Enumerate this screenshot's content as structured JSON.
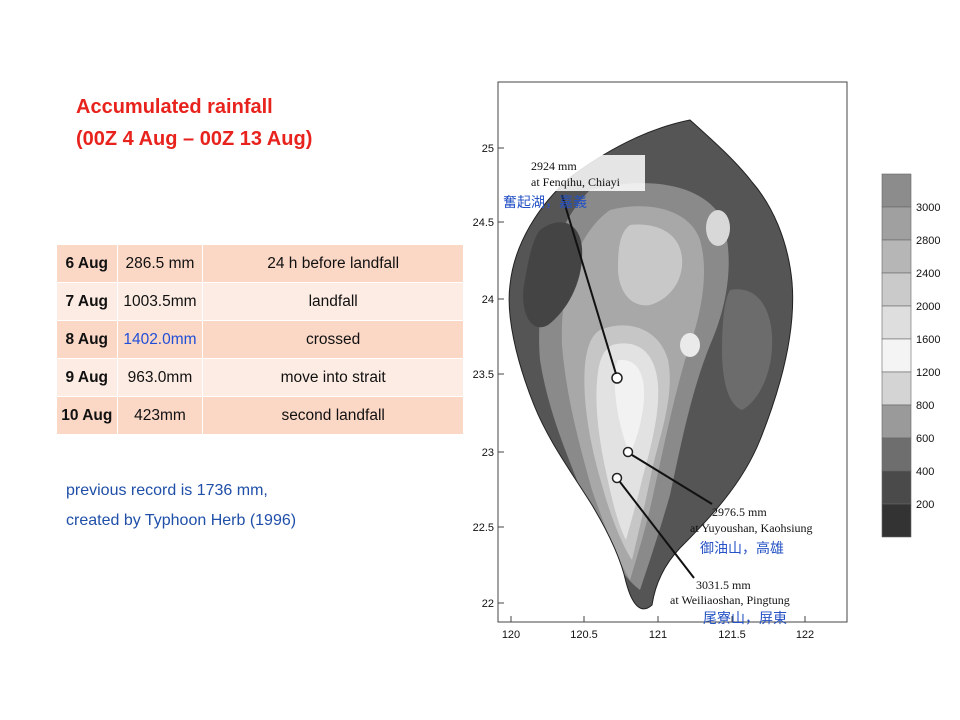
{
  "title": {
    "line1": "Accumulated rainfall",
    "line2": "(00Z 4 Aug – 00Z 13 Aug)"
  },
  "rain_table": {
    "rows": [
      {
        "date": "6 Aug",
        "amount": "286.5 mm",
        "note": "24 h before landfall",
        "amount_color": "#111111"
      },
      {
        "date": "7 Aug",
        "amount": "1003.5mm",
        "note": "landfall",
        "amount_color": "#111111"
      },
      {
        "date": "8 Aug",
        "amount": "1402.0mm",
        "note": "crossed",
        "amount_color": "#1f4fd6"
      },
      {
        "date": "9 Aug",
        "amount": "963.0mm",
        "note": "move into strait",
        "amount_color": "#111111"
      },
      {
        "date": "10 Aug",
        "amount": "423mm",
        "note": "second landfall",
        "amount_color": "#111111"
      }
    ]
  },
  "note": {
    "line1": "previous record is 1736 mm,",
    "line2": "created by Typhoon Herb (1996)"
  },
  "map": {
    "lat_ticks": [
      "25",
      "24.5",
      "24",
      "23.5",
      "23",
      "22.5",
      "22"
    ],
    "lon_ticks": [
      "120",
      "120.5",
      "121",
      "121.5",
      "122"
    ],
    "annotations": [
      {
        "en1": "2924 mm",
        "en2": "at Fenqihu, Chiayi",
        "zh": "奮起湖，嘉義"
      },
      {
        "en1": "2976.5 mm",
        "en2": "at Yuyoushan, Kaohsiung",
        "zh": "御油山，高雄"
      },
      {
        "en1": "3031.5 mm",
        "en2": "at Weiliaoshan, Pingtung",
        "zh": "尾寮山，屏東"
      }
    ]
  },
  "legend": {
    "levels": [
      "3000",
      "2800",
      "2400",
      "2000",
      "1600",
      "1200",
      "800",
      "600",
      "400",
      "200"
    ]
  }
}
